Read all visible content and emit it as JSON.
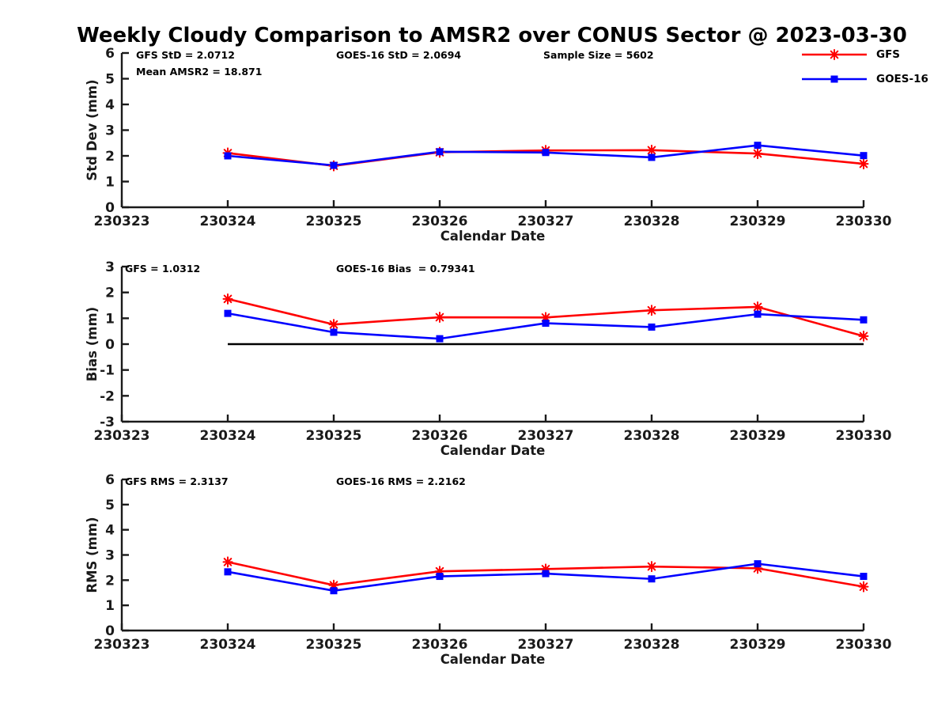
{
  "page": {
    "title": "Weekly Cloudy Comparison to AMSR2 over CONUS Sector @ 2023-03-30",
    "background": "#ffffff"
  },
  "colors": {
    "gfs": "#ff0000",
    "goes16": "#0000ff",
    "axis": "#1a1a1a",
    "zero_line": "#000000",
    "annotation": "#000000"
  },
  "legend": {
    "position": "top-right-outside",
    "items": [
      {
        "label": "GFS",
        "color": "#ff0000",
        "marker": "asterisk"
      },
      {
        "label": "GOES-16",
        "color": "#0000ff",
        "marker": "square"
      }
    ]
  },
  "chart_data": [
    {
      "name": "std-dev",
      "type": "line",
      "title": "",
      "xlabel": "Calendar Date",
      "ylabel": "Std Dev (mm)",
      "categories": [
        "230323",
        "230324",
        "230325",
        "230326",
        "230327",
        "230328",
        "230329",
        "230330"
      ],
      "ylim": [
        0,
        6
      ],
      "yticks": [
        0,
        1,
        2,
        3,
        4,
        5,
        6
      ],
      "grid": false,
      "zero_line": false,
      "annotations": [
        {
          "text": "GFS StD = 2.0712",
          "ax": 18,
          "ay": 7
        },
        {
          "text": "GOES-16 StD = 2.0694",
          "ax": 271,
          "ay": 7
        },
        {
          "text": "Sample Size = 5602",
          "ax": 533,
          "ay": 7
        },
        {
          "text": "Mean AMSR2 = 18.871",
          "ax": 18,
          "ay": 28
        }
      ],
      "series": [
        {
          "name": "GFS",
          "color": "#ff0000",
          "marker": "asterisk",
          "x": [
            "230324",
            "230325",
            "230326",
            "230327",
            "230328",
            "230329",
            "230330"
          ],
          "values": [
            2.11,
            1.61,
            2.14,
            2.21,
            2.22,
            2.09,
            1.69
          ]
        },
        {
          "name": "GOES-16",
          "color": "#0000ff",
          "marker": "square",
          "x": [
            "230324",
            "230325",
            "230326",
            "230327",
            "230328",
            "230329",
            "230330"
          ],
          "values": [
            2.0,
            1.63,
            2.16,
            2.13,
            1.94,
            2.41,
            2.01
          ]
        }
      ]
    },
    {
      "name": "bias",
      "type": "line",
      "title": "",
      "xlabel": "Calendar Date",
      "ylabel": "Bias (mm)",
      "categories": [
        "230323",
        "230324",
        "230325",
        "230326",
        "230327",
        "230328",
        "230329",
        "230330"
      ],
      "ylim": [
        -3,
        3
      ],
      "yticks": [
        -3,
        -2,
        -1,
        0,
        1,
        2,
        3
      ],
      "grid": false,
      "zero_line": true,
      "annotations": [
        {
          "text": "GFS = 1.0312",
          "ax": 4,
          "ay": 7
        },
        {
          "text": "GOES-16 Bias  = 0.79341",
          "ax": 271,
          "ay": 7
        }
      ],
      "series": [
        {
          "name": "GFS",
          "color": "#ff0000",
          "marker": "asterisk",
          "x": [
            "230324",
            "230325",
            "230326",
            "230327",
            "230328",
            "230329",
            "230330"
          ],
          "values": [
            1.75,
            0.76,
            1.04,
            1.03,
            1.31,
            1.44,
            0.31
          ]
        },
        {
          "name": "GOES-16",
          "color": "#0000ff",
          "marker": "square",
          "x": [
            "230324",
            "230325",
            "230326",
            "230327",
            "230328",
            "230329",
            "230330"
          ],
          "values": [
            1.19,
            0.46,
            0.21,
            0.81,
            0.66,
            1.16,
            0.94
          ]
        }
      ]
    },
    {
      "name": "rms",
      "type": "line",
      "title": "",
      "xlabel": "Calendar Date",
      "ylabel": "RMS (mm)",
      "categories": [
        "230323",
        "230324",
        "230325",
        "230326",
        "230327",
        "230328",
        "230329",
        "230330"
      ],
      "ylim": [
        0,
        6
      ],
      "yticks": [
        0,
        1,
        2,
        3,
        4,
        5,
        6
      ],
      "grid": false,
      "zero_line": false,
      "annotations": [
        {
          "text": "GFS RMS = 2.3137",
          "ax": 4,
          "ay": 7
        },
        {
          "text": "GOES-16 RMS = 2.2162",
          "ax": 271,
          "ay": 7
        }
      ],
      "series": [
        {
          "name": "GFS",
          "color": "#ff0000",
          "marker": "asterisk",
          "x": [
            "230324",
            "230325",
            "230326",
            "230327",
            "230328",
            "230329",
            "230330"
          ],
          "values": [
            2.72,
            1.8,
            2.35,
            2.44,
            2.54,
            2.47,
            1.74
          ]
        },
        {
          "name": "GOES-16",
          "color": "#0000ff",
          "marker": "square",
          "x": [
            "230324",
            "230325",
            "230326",
            "230327",
            "230328",
            "230329",
            "230330"
          ],
          "values": [
            2.33,
            1.58,
            2.15,
            2.26,
            2.05,
            2.65,
            2.15
          ]
        }
      ]
    }
  ]
}
